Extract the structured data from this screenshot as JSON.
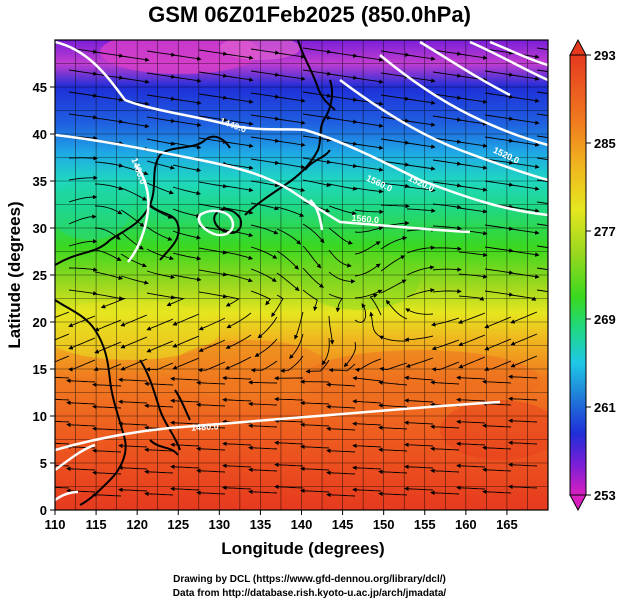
{
  "title": "GSM 06Z01Feb2025 (850.0hPa)",
  "x_axis": {
    "label": "Longitude (degrees)",
    "ticks": [
      110,
      115,
      120,
      125,
      130,
      135,
      140,
      145,
      150,
      155,
      160,
      165
    ],
    "range": [
      110,
      170
    ]
  },
  "y_axis": {
    "label": "Latitude  (degrees)",
    "ticks": [
      0,
      5,
      10,
      15,
      20,
      25,
      30,
      35,
      40,
      45
    ],
    "range": [
      0,
      50
    ]
  },
  "colorbar": {
    "ticks": [
      293,
      285,
      277,
      269,
      261,
      253
    ],
    "range": [
      253,
      293
    ],
    "colors": [
      "#d81fbf",
      "#7a1fd8",
      "#1f2ed8",
      "#1f7ad8",
      "#1fc8e6",
      "#1fd8a0",
      "#3ad81f",
      "#9ad81f",
      "#e6e61f",
      "#f0b41f",
      "#f07a1f",
      "#e63a1f"
    ]
  },
  "contours": [
    {
      "label": "1440.0"
    },
    {
      "label": "1520.0"
    },
    {
      "label": "1480.0"
    },
    {
      "label": "1560.0"
    },
    {
      "label": "1520.0"
    },
    {
      "label": "1560.0"
    },
    {
      "label": "1480.0"
    }
  ],
  "credits": {
    "line1": "Drawing by DCL (https://www.gfd-dennou.org/library/dcl/)",
    "line2": "Data from http://database.rish.kyoto-u.ac.jp/arch/jmadata/"
  }
}
